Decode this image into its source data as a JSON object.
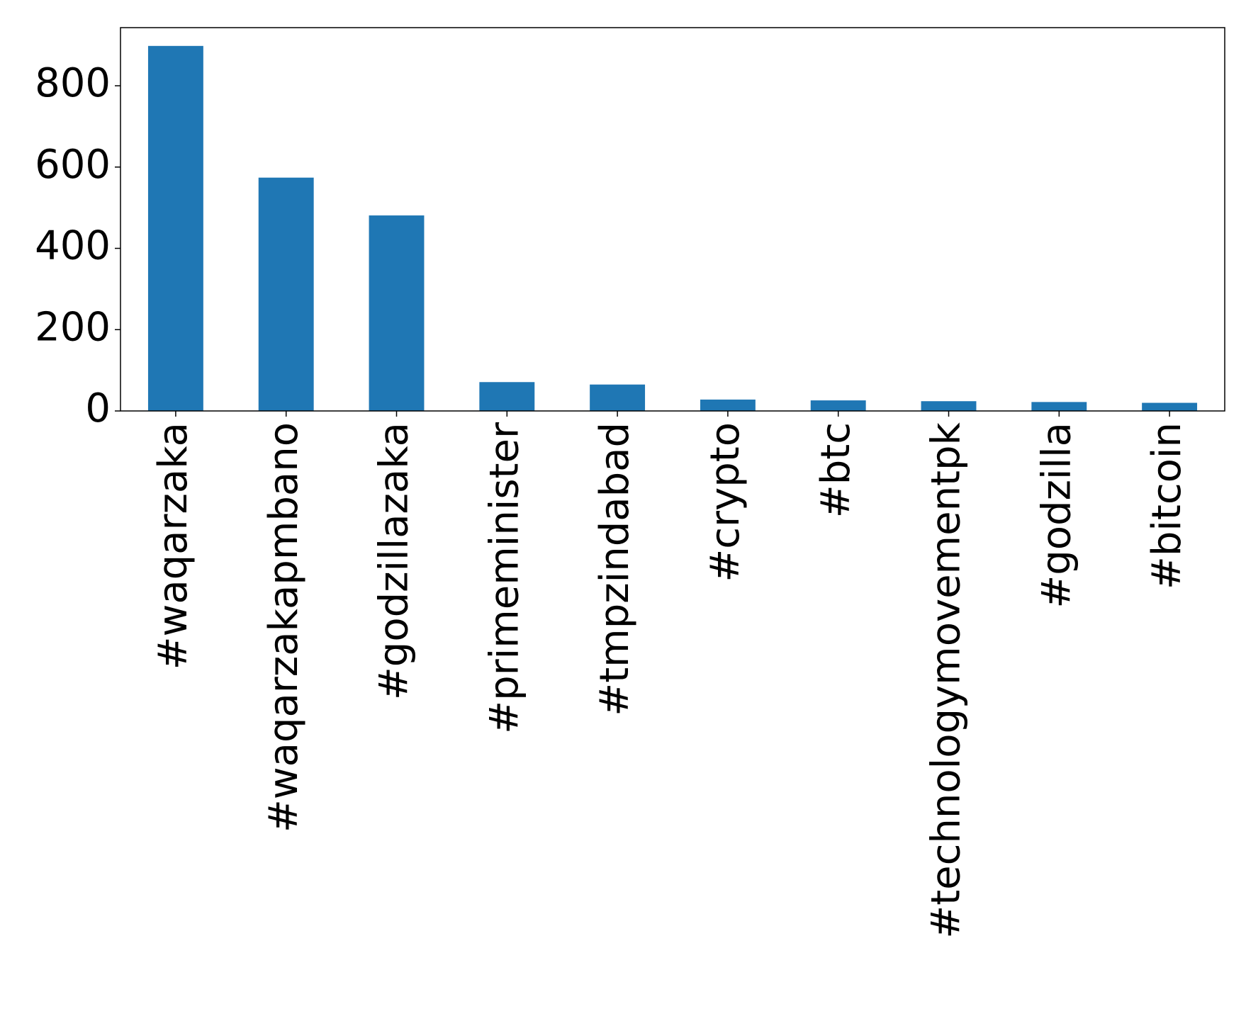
{
  "chart_data": {
    "type": "bar",
    "categories": [
      "#waqarzaka",
      "#waqarzakapmbano",
      "#godzillazaka",
      "#primeminister",
      "#tmpzindabad",
      "#crypto",
      "#btc",
      "#technologymovementpk",
      "#godzilla",
      "#bitcoin"
    ],
    "values": [
      898,
      574,
      481,
      71,
      65,
      28,
      26,
      24,
      22,
      20
    ],
    "color": "#1f77b4",
    "ylim": [
      0,
      943
    ],
    "yticks": [
      0,
      200,
      400,
      600,
      800
    ],
    "grid": false
  }
}
